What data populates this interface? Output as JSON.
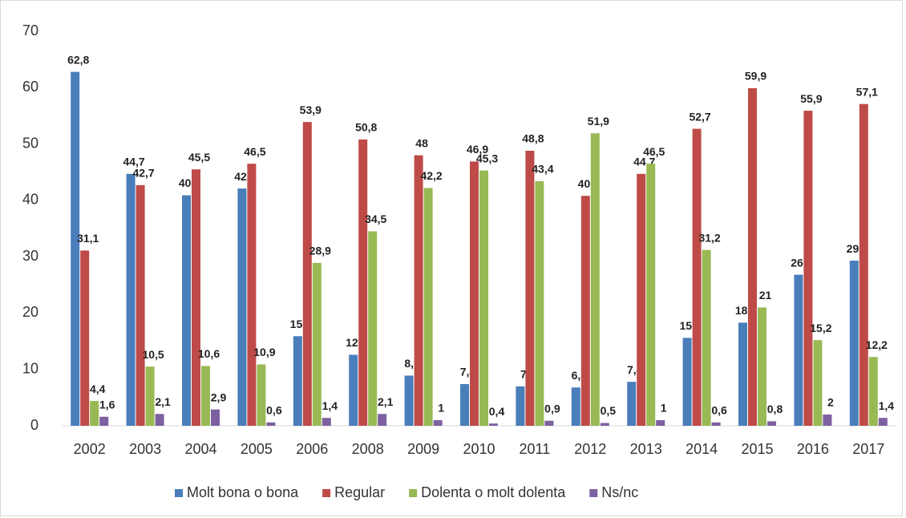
{
  "chart_data": {
    "type": "bar",
    "categories": [
      "2002",
      "2003",
      "2004",
      "2005",
      "2006",
      "2008",
      "2009",
      "2010",
      "2011",
      "2012",
      "2013",
      "2014",
      "2015",
      "2016",
      "2017"
    ],
    "ylim": [
      0,
      70
    ],
    "yticks": [
      0,
      10,
      20,
      30,
      40,
      50,
      60,
      70
    ],
    "grid": false,
    "legend": "bottom",
    "series": [
      {
        "name": "Molt bona o bona",
        "color": "#4a7ebb",
        "values": [
          62.8,
          44.7,
          40.9,
          42.1,
          15.9,
          12.6,
          8.9,
          7.4,
          7,
          6.8,
          7.8,
          15.6,
          18.3,
          26.8,
          29.3
        ],
        "value_labels": [
          "62,8",
          "44,7",
          "40,9",
          "42,1",
          "15,9",
          "12,6",
          "8,9",
          "7,4",
          "7",
          "6,8",
          "7,8",
          "15,6",
          "18,3",
          "26,8",
          "29,3"
        ]
      },
      {
        "name": "Regular",
        "color": "#be4b48",
        "values": [
          31.1,
          42.7,
          45.5,
          46.5,
          53.9,
          50.8,
          48,
          46.9,
          48.8,
          40.8,
          44.7,
          52.7,
          59.9,
          55.9,
          57.1
        ],
        "value_labels": [
          "31,1",
          "42,7",
          "45,5",
          "46,5",
          "53,9",
          "50,8",
          "48",
          "46,9",
          "48,8",
          "40,8",
          "44,7",
          "52,7",
          "59,9",
          "55,9",
          "57,1"
        ]
      },
      {
        "name": "Dolenta o molt dolenta",
        "color": "#98b954",
        "values": [
          4.4,
          10.5,
          10.6,
          10.9,
          28.9,
          34.5,
          42.2,
          45.3,
          43.4,
          51.9,
          46.5,
          31.2,
          21,
          15.2,
          12.2
        ],
        "value_labels": [
          "4,4",
          "10,5",
          "10,6",
          "10,9",
          "28,9",
          "34,5",
          "42,2",
          "45,3",
          "43,4",
          "51,9",
          "46,5",
          "31,2",
          "21",
          "15,2",
          "12,2"
        ]
      },
      {
        "name": "Ns/nc",
        "color": "#7d60a0",
        "values": [
          1.6,
          2.1,
          2.9,
          0.6,
          1.4,
          2.1,
          1,
          0.4,
          0.9,
          0.5,
          1,
          0.6,
          0.8,
          2,
          1.4
        ],
        "value_labels": [
          "1,6",
          "2,1",
          "2,9",
          "0,6",
          "1,4",
          "2,1",
          "1",
          "0,4",
          "0,9",
          "0,5",
          "1",
          "0,6",
          "0,8",
          "2",
          "1,4"
        ]
      }
    ]
  }
}
